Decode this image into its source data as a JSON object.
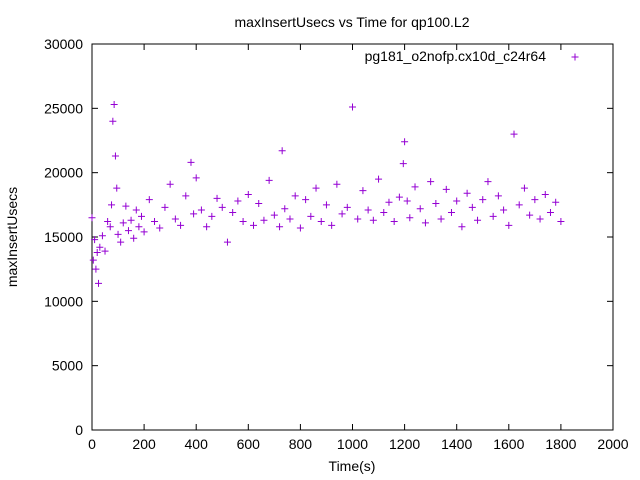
{
  "chart_data": {
    "type": "scatter",
    "title": "maxInsertUsecs vs Time for qp100.L2",
    "xlabel": "Time(s)",
    "ylabel": "maxInsertUsecs",
    "xlim": [
      0,
      2000
    ],
    "ylim": [
      0,
      30000
    ],
    "x_ticks": [
      "0",
      "200",
      "400",
      "600",
      "800",
      "1000",
      "1200",
      "1400",
      "1600",
      "1800",
      "2000"
    ],
    "y_ticks": [
      "0",
      "5000",
      "10000",
      "15000",
      "20000",
      "25000",
      "30000"
    ],
    "legend_position": "top-right",
    "grid": false,
    "series": [
      {
        "name": "pg181_o2nofp.cx10d_c24r64",
        "color": "#9400d3",
        "marker": "plus",
        "x": [
          0,
          5,
          10,
          15,
          20,
          25,
          30,
          40,
          50,
          60,
          70,
          75,
          80,
          85,
          90,
          95,
          100,
          110,
          120,
          130,
          140,
          150,
          160,
          170,
          180,
          190,
          200,
          220,
          240,
          260,
          280,
          300,
          320,
          340,
          360,
          380,
          390,
          400,
          420,
          440,
          460,
          480,
          500,
          520,
          540,
          560,
          580,
          600,
          620,
          640,
          660,
          680,
          700,
          720,
          730,
          740,
          760,
          780,
          800,
          820,
          840,
          860,
          880,
          900,
          920,
          940,
          960,
          980,
          1000,
          1020,
          1040,
          1060,
          1080,
          1100,
          1120,
          1140,
          1160,
          1180,
          1195,
          1200,
          1210,
          1220,
          1240,
          1260,
          1280,
          1300,
          1320,
          1340,
          1360,
          1380,
          1400,
          1420,
          1440,
          1460,
          1480,
          1500,
          1520,
          1540,
          1560,
          1580,
          1600,
          1620,
          1640,
          1660,
          1680,
          1700,
          1720,
          1740,
          1760,
          1780,
          1800
        ],
        "y": [
          16500,
          13200,
          14800,
          12500,
          13800,
          11400,
          14200,
          15100,
          13900,
          16200,
          15800,
          17500,
          24000,
          25300,
          21300,
          18800,
          15200,
          14600,
          16100,
          17400,
          15500,
          16300,
          14900,
          17100,
          15800,
          16600,
          15400,
          17900,
          16200,
          15700,
          17300,
          19100,
          16400,
          15900,
          18200,
          20800,
          16800,
          19600,
          17100,
          15800,
          16600,
          18000,
          17300,
          14600,
          16900,
          17800,
          16200,
          18300,
          15900,
          17600,
          16300,
          19400,
          16700,
          15800,
          21700,
          17200,
          16400,
          18200,
          15700,
          17900,
          16600,
          18800,
          16200,
          17500,
          15900,
          19100,
          16800,
          17300,
          25100,
          16400,
          18600,
          17100,
          16300,
          19500,
          16900,
          17700,
          16200,
          18100,
          20700,
          22400,
          17800,
          16500,
          18900,
          17200,
          16100,
          19300,
          17600,
          16400,
          18700,
          16900,
          17800,
          15800,
          18400,
          17300,
          16300,
          17900,
          19300,
          16600,
          18200,
          17100,
          15900,
          23000,
          17500,
          18800,
          16700,
          17900,
          16400,
          18300,
          16900,
          17700,
          16200
        ]
      }
    ]
  }
}
